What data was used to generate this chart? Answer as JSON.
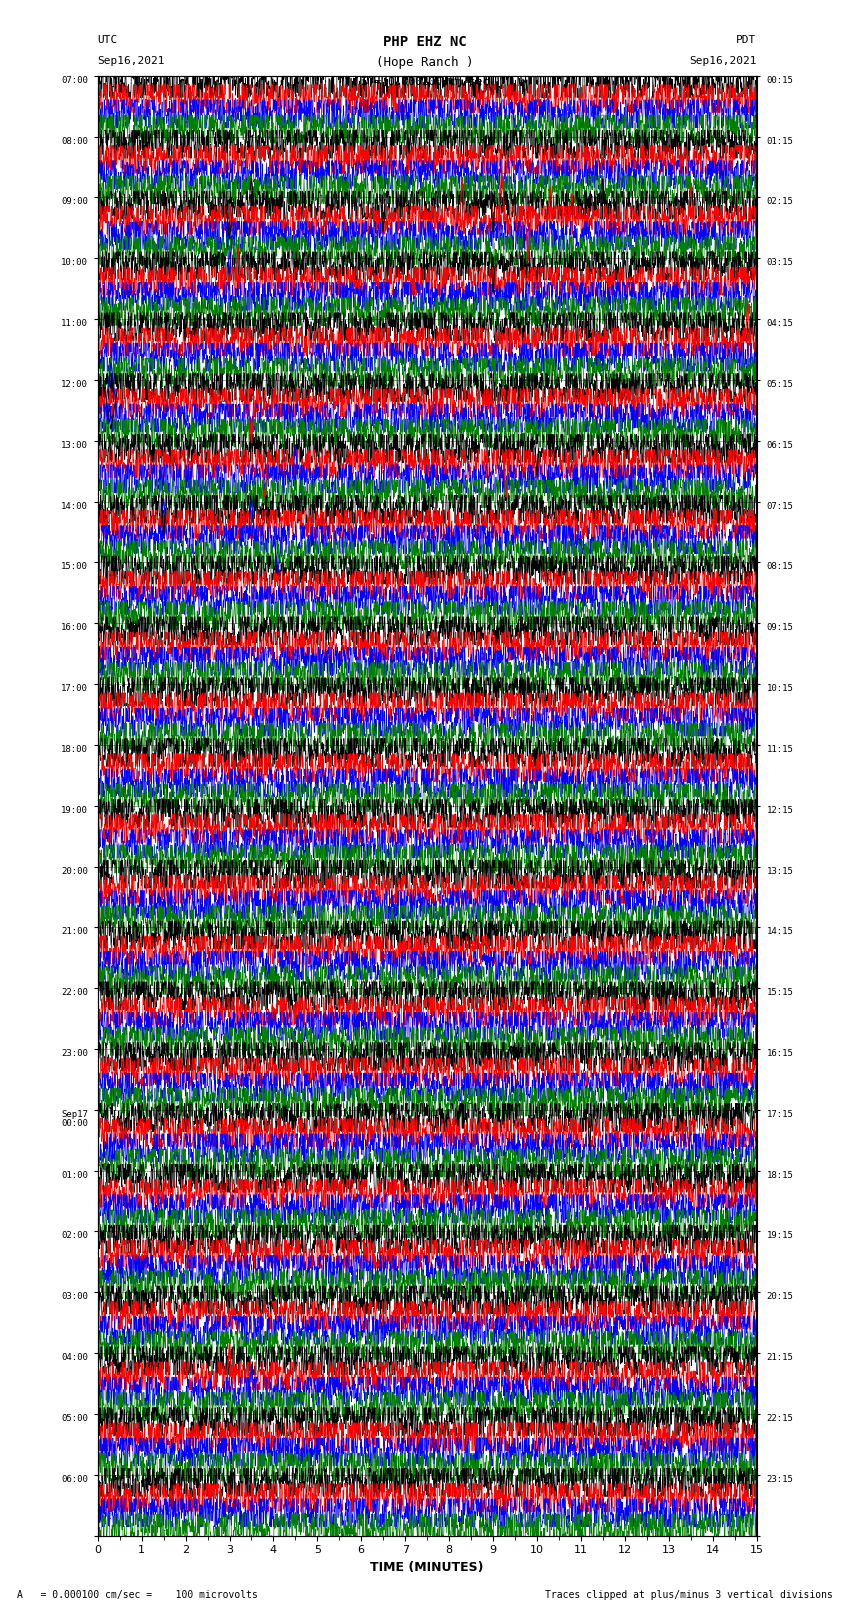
{
  "title_line1": "PHP EHZ NC",
  "title_line2": "(Hope Ranch )",
  "scale_label": "I = 0.000100 cm/sec",
  "utc_label": "UTC",
  "utc_date": "Sep16,2021",
  "pdt_label": "PDT",
  "pdt_date": "Sep16,2021",
  "xlabel": "TIME (MINUTES)",
  "footer_left": "A   = 0.000100 cm/sec =    100 microvolts",
  "footer_right": "Traces clipped at plus/minus 3 vertical divisions",
  "left_times": [
    "07:00",
    "08:00",
    "09:00",
    "10:00",
    "11:00",
    "12:00",
    "13:00",
    "14:00",
    "15:00",
    "16:00",
    "17:00",
    "18:00",
    "19:00",
    "20:00",
    "21:00",
    "22:00",
    "23:00",
    "Sep17\n00:00",
    "01:00",
    "02:00",
    "03:00",
    "04:00",
    "05:00",
    "06:00"
  ],
  "right_times": [
    "00:15",
    "01:15",
    "02:15",
    "03:15",
    "04:15",
    "05:15",
    "06:15",
    "07:15",
    "08:15",
    "09:15",
    "10:15",
    "11:15",
    "12:15",
    "13:15",
    "14:15",
    "15:15",
    "16:15",
    "17:15",
    "18:15",
    "19:15",
    "20:15",
    "21:15",
    "22:15",
    "23:15"
  ],
  "n_rows": 24,
  "n_traces_per_row": 4,
  "colors": [
    "black",
    "red",
    "blue",
    "green"
  ],
  "minutes_per_row": 15,
  "bg_color": "white"
}
